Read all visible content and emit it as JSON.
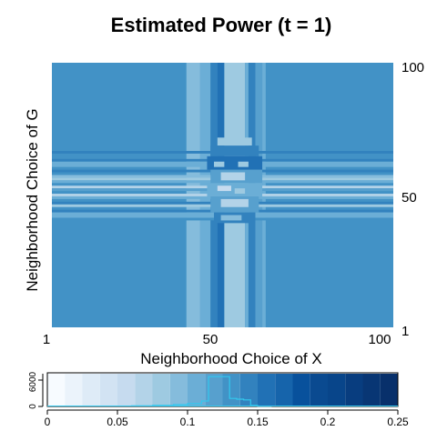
{
  "chart_data": [
    {
      "type": "heatmap",
      "title": "Estimated Power (t = 1)",
      "xlabel": "Neighborhood Choice of X",
      "ylabel": "Neighborhood Choice of G",
      "x_ticks": [
        1,
        50,
        100
      ],
      "y_ticks": [
        1,
        50,
        100
      ],
      "xlim": [
        1,
        100
      ],
      "ylim": [
        1,
        100
      ],
      "grid": false,
      "colormap": "Blues",
      "background_value": 0.125,
      "bands": [
        {
          "axis": "x",
          "from": 40,
          "to": 44,
          "value": 0.09
        },
        {
          "axis": "x",
          "from": 44,
          "to": 47,
          "value": 0.11
        },
        {
          "axis": "x",
          "from": 47,
          "to": 49,
          "value": 0.14
        },
        {
          "axis": "x",
          "from": 49,
          "to": 51,
          "value": 0.15
        },
        {
          "axis": "x",
          "from": 51,
          "to": 57,
          "value": 0.075
        },
        {
          "axis": "x",
          "from": 57,
          "to": 58,
          "value": 0.105
        },
        {
          "axis": "x",
          "from": 58,
          "to": 60,
          "value": 0.145
        },
        {
          "axis": "x",
          "from": 60,
          "to": 62,
          "value": 0.12
        },
        {
          "axis": "x",
          "from": 62,
          "to": 63,
          "value": 0.105
        },
        {
          "axis": "y",
          "from": 66,
          "to": 67,
          "value": 0.145
        },
        {
          "axis": "y",
          "from": 63,
          "to": 64,
          "value": 0.14
        },
        {
          "axis": "y",
          "from": 61,
          "to": 63,
          "value": 0.11
        },
        {
          "axis": "y",
          "from": 59,
          "to": 60,
          "value": 0.145
        },
        {
          "axis": "y",
          "from": 57,
          "to": 58,
          "value": 0.095
        },
        {
          "axis": "y",
          "from": 56,
          "to": 57,
          "value": 0.075
        },
        {
          "axis": "y",
          "from": 55,
          "to": 56,
          "value": 0.11
        },
        {
          "axis": "y",
          "from": 53,
          "to": 54,
          "value": 0.07
        },
        {
          "axis": "y",
          "from": 52,
          "to": 53,
          "value": 0.115
        },
        {
          "axis": "y",
          "from": 50,
          "to": 51,
          "value": 0.065
        },
        {
          "axis": "y",
          "from": 49,
          "to": 50,
          "value": 0.1
        },
        {
          "axis": "y",
          "from": 47,
          "to": 48,
          "value": 0.14
        },
        {
          "axis": "y",
          "from": 46,
          "to": 47,
          "value": 0.08
        },
        {
          "axis": "y",
          "from": 44,
          "to": 45,
          "value": 0.145
        },
        {
          "axis": "y",
          "from": 42,
          "to": 44,
          "value": 0.11
        },
        {
          "axis": "y",
          "from": 41,
          "to": 42,
          "value": 0.135
        }
      ],
      "center_cells": [
        {
          "x": 49,
          "y": 69,
          "w": 10,
          "h": 3,
          "value": 0.085
        },
        {
          "x": 47,
          "y": 65,
          "w": 14,
          "h": 4,
          "value": 0.14
        },
        {
          "x": 46,
          "y": 60,
          "w": 16,
          "h": 5,
          "value": 0.155
        },
        {
          "x": 48,
          "y": 61,
          "w": 3,
          "h": 2,
          "value": 0.08
        },
        {
          "x": 55,
          "y": 61,
          "w": 3,
          "h": 2,
          "value": 0.08
        },
        {
          "x": 47,
          "y": 55,
          "w": 15,
          "h": 5,
          "value": 0.12
        },
        {
          "x": 50,
          "y": 56,
          "w": 7,
          "h": 3,
          "value": 0.07
        },
        {
          "x": 46,
          "y": 50,
          "w": 16,
          "h": 5,
          "value": 0.1
        },
        {
          "x": 49,
          "y": 52,
          "w": 4,
          "h": 2,
          "value": 0.06
        },
        {
          "x": 54,
          "y": 51,
          "w": 3,
          "h": 2,
          "value": 0.075
        },
        {
          "x": 47,
          "y": 44,
          "w": 14,
          "h": 6,
          "value": 0.115
        },
        {
          "x": 50,
          "y": 46,
          "w": 8,
          "h": 3,
          "value": 0.07
        },
        {
          "x": 48,
          "y": 40,
          "w": 12,
          "h": 4,
          "value": 0.14
        },
        {
          "x": 50,
          "y": 41,
          "w": 6,
          "h": 2,
          "value": 0.09
        }
      ]
    },
    {
      "type": "bar",
      "role": "color-legend",
      "x_ticks": [
        "0",
        "0.05",
        "0.1",
        "0.15",
        "0.2",
        "0.25"
      ],
      "y_ticks": [
        "0",
        "6000"
      ],
      "xlim": [
        0,
        0.25
      ],
      "ylim": [
        0,
        9000
      ],
      "bins": [
        0,
        0.0125,
        0.025,
        0.0375,
        0.05,
        0.0625,
        0.075,
        0.0875,
        0.1,
        0.1125,
        0.125,
        0.1375,
        0.15,
        0.1625,
        0.175,
        0.1875,
        0.2,
        0.2125,
        0.225,
        0.2375,
        0.25
      ],
      "histogram": {
        "bin_edges": [
          0.06,
          0.075,
          0.09,
          0.1,
          0.11,
          0.115,
          0.12,
          0.125,
          0.13,
          0.135,
          0.14,
          0.145,
          0.15,
          0.16
        ],
        "counts": [
          150,
          300,
          500,
          800,
          1500,
          8200,
          8200,
          8200,
          2200,
          2000,
          1800,
          300,
          100
        ]
      },
      "histogram_color": "#32c8ee",
      "bar_color": "#08306b"
    }
  ]
}
